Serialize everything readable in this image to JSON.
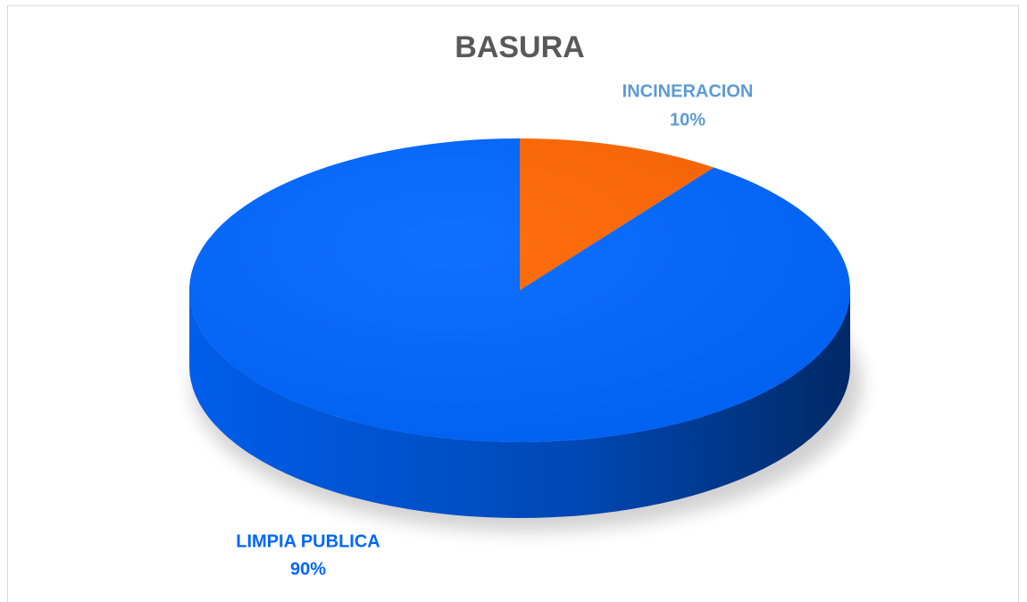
{
  "chart_data": {
    "type": "pie3d",
    "title": "BASURA",
    "categories": [
      "INCINERACION",
      "LIMPIA PUBLICA"
    ],
    "values": [
      10,
      90
    ],
    "value_labels": [
      "10%",
      "90%"
    ],
    "colors": [
      "#ff6600",
      "#0066ff"
    ],
    "label_colors": [
      "#5b9bd5",
      "#0066ff"
    ]
  }
}
